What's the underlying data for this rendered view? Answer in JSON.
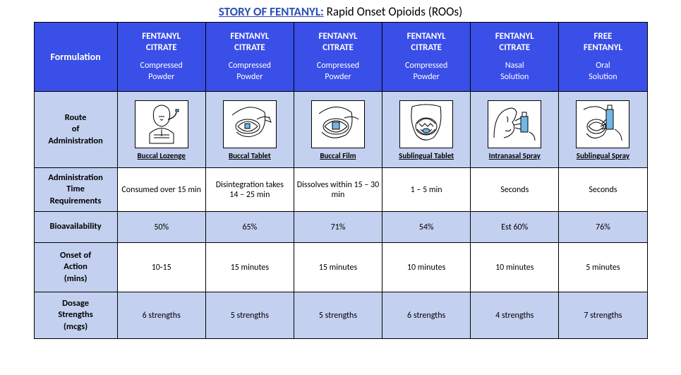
{
  "title_strong": "STORY OF FENTANYL:",
  "title_rest": "  Rapid Onset Opioids (ROOs)",
  "header": {
    "formulation": "Formulation",
    "cols": [
      {
        "top": "FENTANYL\nCITRATE",
        "bot": "Compressed\nPowder"
      },
      {
        "top": "FENTANYL\nCITRATE",
        "bot": "Compressed\nPowder"
      },
      {
        "top": "FENTANYL\nCITRATE",
        "bot": "Compressed\nPowder"
      },
      {
        "top": "FENTANYL\nCITRATE",
        "bot": "Compressed\nPowder"
      },
      {
        "top": "FENTANYL\nCITRATE",
        "bot": "Nasal\nSolution"
      },
      {
        "top": "FREE\nFENTANYL",
        "bot": "Oral\nSolution"
      }
    ]
  },
  "rows": {
    "route": {
      "label": "Route\nof\nAdministration",
      "vals": [
        "Buccal Lozenge",
        "Buccal Tablet",
        "Buccal Film",
        "Sublingual Tablet",
        "Intranasal Spray",
        "Sublingual Spray"
      ]
    },
    "admin": {
      "label": "Administration\nTime\nRequirements",
      "vals": [
        "Consumed over 15 min",
        "Disintegration takes\n14 – 25 min",
        "Dissolves within 15 – 30 min",
        "1 – 5 min",
        "Seconds",
        "Seconds"
      ]
    },
    "bio": {
      "label": "Bioavailability",
      "vals": [
        "50%",
        "65%",
        "71%",
        "54%",
        "Est 60%",
        "76%"
      ]
    },
    "onset": {
      "label": "Onset of\nAction\n(mins)",
      "vals": [
        "10-15",
        "15 minutes",
        "15 minutes",
        "10 minutes",
        "10 minutes",
        "5 minutes"
      ]
    },
    "dosage": {
      "label": "Dosage\nStrengths\n(mcgs)",
      "vals": [
        "6 strengths",
        "5 strengths",
        "5 strengths",
        "6 strengths",
        "4 strengths",
        "7 strengths"
      ]
    }
  },
  "colors": {
    "header_bg": "#3a4ee8",
    "band_bg": "#c4d0ef",
    "title_color": "#2a4eb5",
    "accent": "#6fb7e6"
  }
}
